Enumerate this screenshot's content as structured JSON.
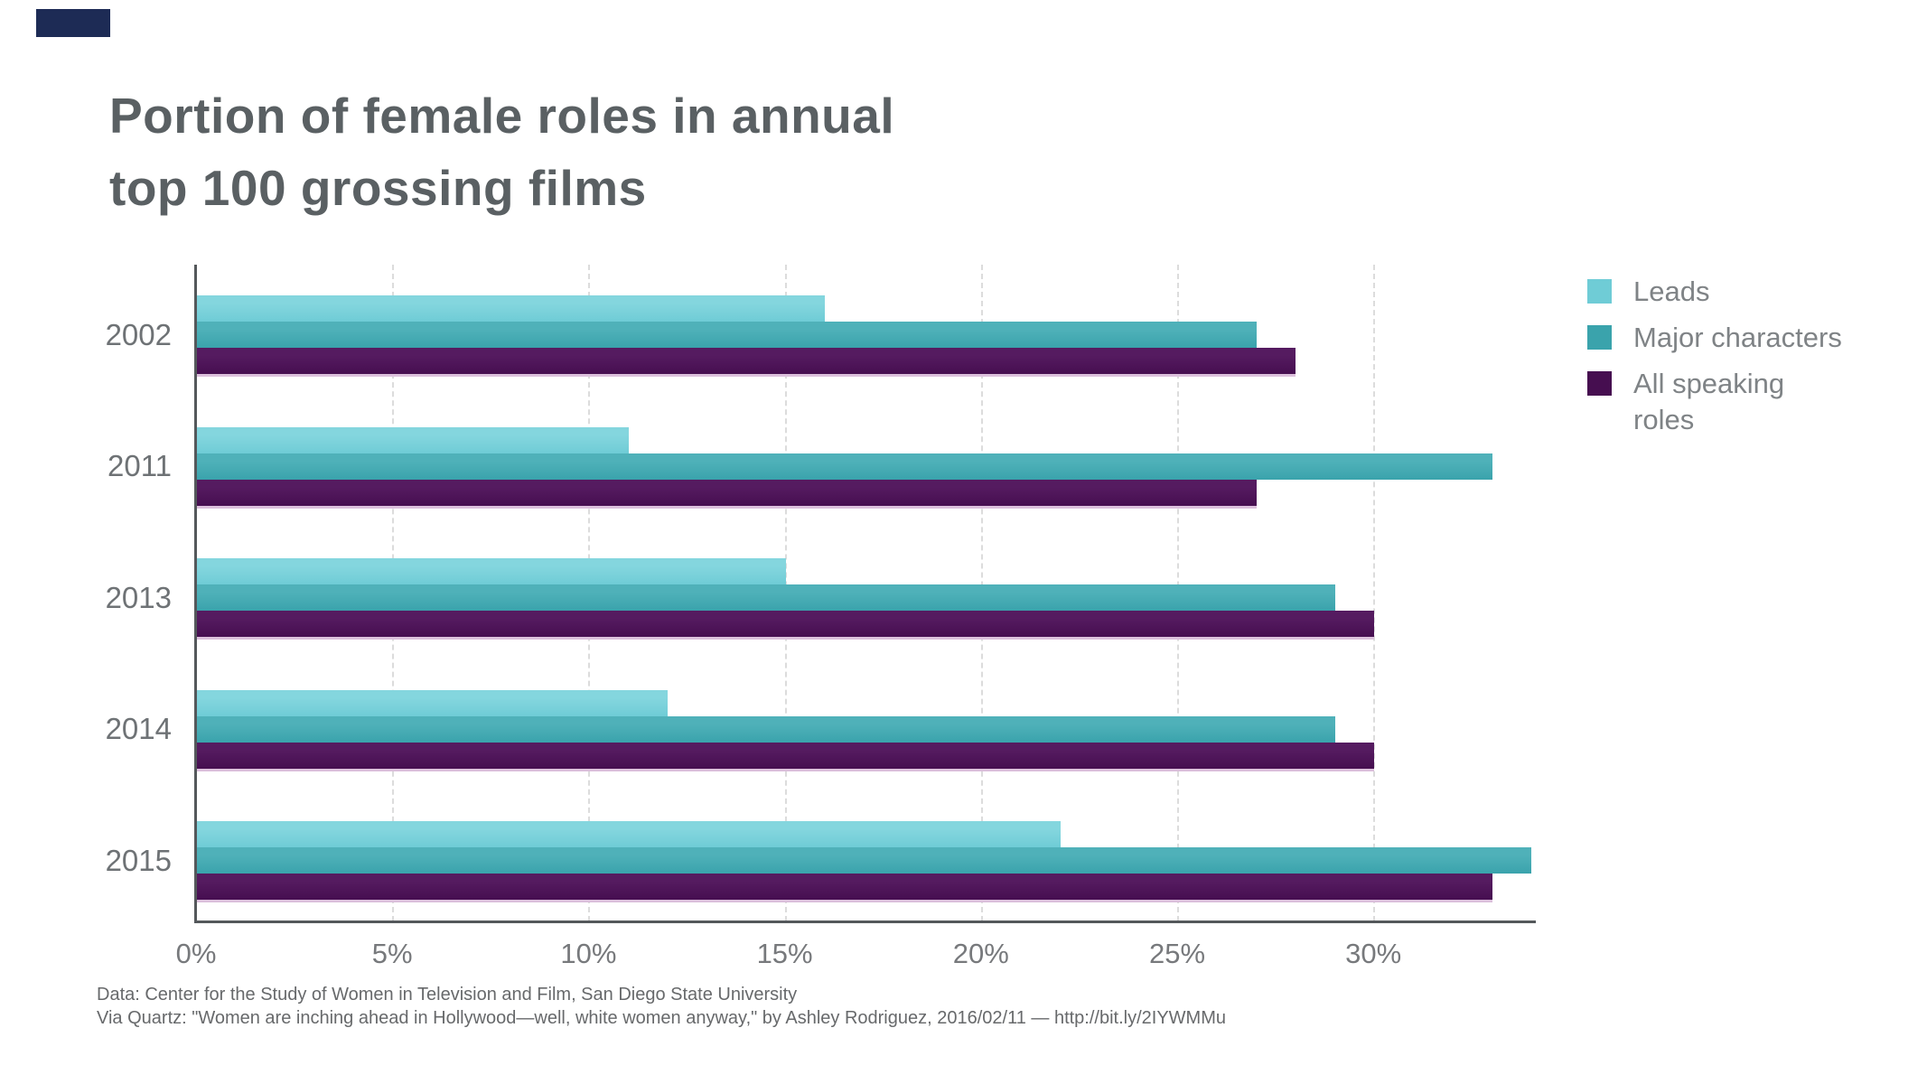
{
  "decor": {
    "corner_accent_color": "#1d2b55"
  },
  "title": {
    "lines": [
      "Portion of female roles in annual",
      "top 100 grossing films"
    ]
  },
  "legend": {
    "items": [
      {
        "label": "Leads",
        "label_lines": [
          "Leads"
        ],
        "color": "#6fccd6"
      },
      {
        "label": "Major characters",
        "label_lines": [
          "Major characters"
        ],
        "color": "#3aa3ac"
      },
      {
        "label": "All speaking roles",
        "label_lines": [
          "All speaking",
          "roles"
        ],
        "color": "#460e50"
      }
    ]
  },
  "chart_data": {
    "type": "bar",
    "orientation": "horizontal",
    "title": "Portion of female roles in annual top 100 grossing films",
    "categories": [
      "2002",
      "2011",
      "2013",
      "2014",
      "2015"
    ],
    "series": [
      {
        "name": "Leads",
        "color": "#6fccd6",
        "color_light": "#84d6de",
        "values": [
          16,
          11,
          15,
          12,
          22
        ]
      },
      {
        "name": "Major characters",
        "color": "#3aa3ac",
        "color_light": "#4fb1b9",
        "values": [
          27,
          33,
          29,
          29,
          34
        ]
      },
      {
        "name": "All speaking roles",
        "color": "#460e50",
        "color_light": "#551b60",
        "values": [
          28,
          27,
          30,
          30,
          33
        ]
      }
    ],
    "xlabel": "",
    "ylabel": "",
    "xlim": [
      0,
      35
    ],
    "x_ticks": [
      {
        "value": 0,
        "label": "0%"
      },
      {
        "value": 5,
        "label": "5%"
      },
      {
        "value": 10,
        "label": "10%"
      },
      {
        "value": 15,
        "label": "15%"
      },
      {
        "value": 20,
        "label": "20%"
      },
      {
        "value": 25,
        "label": "25%"
      },
      {
        "value": 30,
        "label": "30%"
      }
    ],
    "x_grid_values": [
      5,
      10,
      15,
      20,
      25,
      30
    ],
    "grid": "dashed-vertical",
    "legend_position": "right"
  },
  "footer": {
    "lines": [
      "Data: Center for the Study of Women in Television and Film, San Diego State University",
      "Via Quartz: \"Women are inching ahead in Hollywood—well, white women anyway,\" by Ashley Rodriguez, 2016/02/11 — http://bit.ly/2IYWMMu"
    ]
  }
}
